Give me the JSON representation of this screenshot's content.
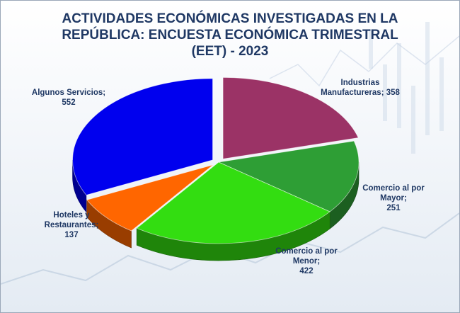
{
  "chart_data": {
    "type": "pie",
    "title_lines": [
      "ACTIVIDADES ECONÓMICAS INVESTIGADAS EN LA",
      "REPÚBLICA: ENCUESTA ECONÓMICA TRIMESTRAL",
      "(EET) - 2023"
    ],
    "slices": [
      {
        "label_lines": [
          "Industrias",
          "Manufactureras; 358"
        ],
        "value": 358,
        "color": "#9b3366"
      },
      {
        "label_lines": [
          "Comercio al por",
          "Mayor;",
          "251"
        ],
        "value": 251,
        "color": "#2e9e35"
      },
      {
        "label_lines": [
          "Comercio al por",
          "Menor;",
          "422"
        ],
        "value": 422,
        "color": "#33dd11"
      },
      {
        "label_lines": [
          "Hoteles y",
          "Restaurantes;",
          "137"
        ],
        "value": 137,
        "color": "#ff6600"
      },
      {
        "label_lines": [
          "Algunos  Servicios;",
          "552"
        ],
        "value": 552,
        "color": "#0000ee"
      }
    ],
    "start_angle_deg": -90,
    "exploded": [
      0,
      3,
      4
    ],
    "style": "3d-exploded"
  }
}
